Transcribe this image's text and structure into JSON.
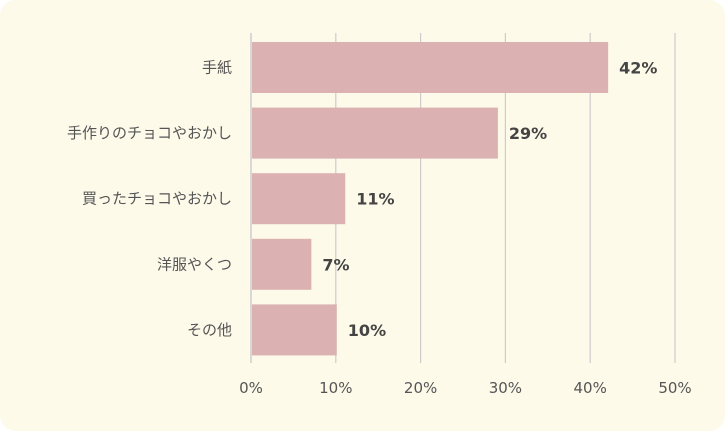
{
  "chart_data": {
    "type": "bar",
    "orientation": "horizontal",
    "categories": [
      "手紙",
      "手作りのチョコやおかし",
      "買ったチョコやおかし",
      "洋服やくつ",
      "その他"
    ],
    "values": [
      42,
      29,
      11,
      7,
      10
    ],
    "value_labels": [
      "42%",
      "29%",
      "11%",
      "7%",
      "10%"
    ],
    "xlim": [
      0,
      50
    ],
    "x_ticks": [
      0,
      10,
      20,
      30,
      40,
      50
    ],
    "x_tick_labels": [
      "0%",
      "10%",
      "20%",
      "30%",
      "40%",
      "50%"
    ],
    "grid": "vertical",
    "bar_color": "#dbb1b1",
    "grid_color": "#cccccc",
    "background_color": "#fdfaea"
  }
}
